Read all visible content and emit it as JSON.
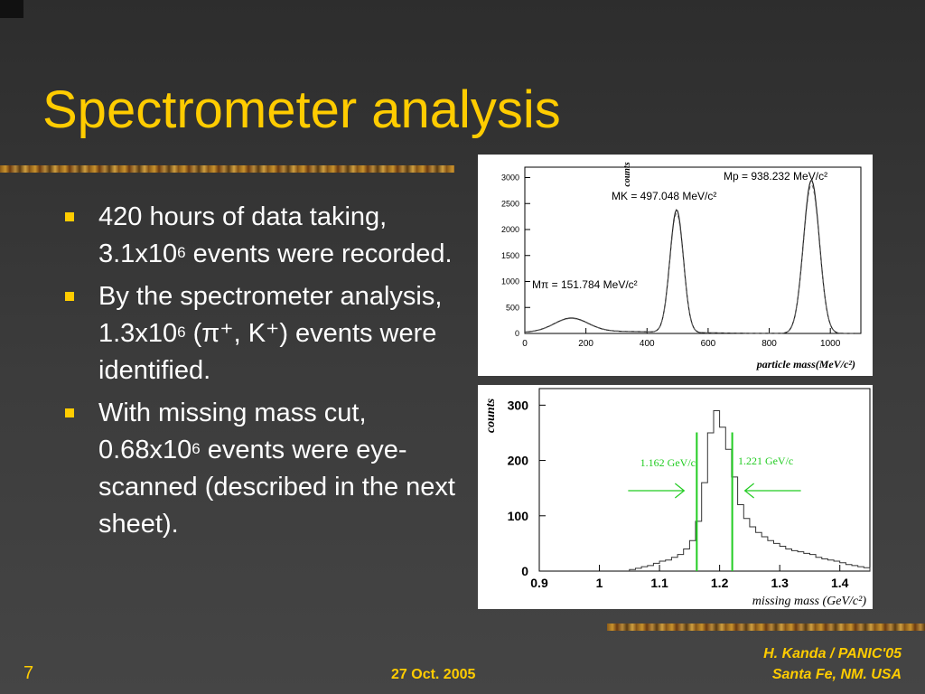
{
  "slide": {
    "title": "Spectrometer analysis",
    "page_number": "7",
    "date": "27 Oct. 2005",
    "author_line1": "H. Kanda / PANIC'05",
    "author_line2": "Santa Fe, NM. USA",
    "accent_color": "#ffcc00"
  },
  "bullets": [
    {
      "a": "420 hours of data taking, 3.1x10",
      "sup": "6",
      "b": " events were recorded."
    },
    {
      "a": "By the spectrometer analysis, 1.3x10",
      "sup": "6",
      "b": " (π⁺, K⁺) events were identified."
    },
    {
      "a": "With missing mass cut, 0.68x10",
      "sup": "6",
      "b": " events were eye-scanned (described in the next sheet)."
    }
  ],
  "chart_data": [
    {
      "type": "line",
      "xlabel": "particle mass(MeV/c²)",
      "ylabel": "counts",
      "xlim": [
        0,
        1100
      ],
      "ylim": [
        0,
        3200
      ],
      "x_ticks": [
        "0",
        "200",
        "400",
        "600",
        "800",
        "1000"
      ],
      "y_ticks": [
        "0",
        "500",
        "1000",
        "1500",
        "2000",
        "2500",
        "3000"
      ],
      "annotations": [
        "Mπ = 151.784 MeV/c²",
        "MK = 497.048 MeV/c²",
        "Mp = 938.232 MeV/c²"
      ],
      "peaks": [
        {
          "mass": 151.784,
          "counts": 260,
          "width": 55
        },
        {
          "mass": 497.048,
          "counts": 2360,
          "width": 22
        },
        {
          "mass": 938.232,
          "counts": 2950,
          "width": 26
        }
      ]
    },
    {
      "type": "histogram",
      "xlabel": "missing mass (GeV/c²)",
      "ylabel": "counts",
      "xlim": [
        0.9,
        1.45
      ],
      "ylim": [
        0,
        330
      ],
      "x_ticks": [
        "0.9",
        "1",
        "1.1",
        "1.2",
        "1.3",
        "1.4"
      ],
      "y_ticks": [
        "0",
        "100",
        "200",
        "300"
      ],
      "cut_low": {
        "value": 1.162,
        "label": "1.162 GeV/c"
      },
      "cut_high": {
        "value": 1.221,
        "label": "1.221 GeV/c"
      },
      "cut_color": "#22cc22",
      "bins_x": [
        1.05,
        1.06,
        1.07,
        1.08,
        1.09,
        1.1,
        1.11,
        1.12,
        1.13,
        1.14,
        1.15,
        1.16,
        1.17,
        1.18,
        1.19,
        1.2,
        1.21,
        1.22,
        1.23,
        1.24,
        1.25,
        1.26,
        1.27,
        1.28,
        1.29,
        1.3,
        1.31,
        1.32,
        1.33,
        1.34,
        1.35,
        1.36,
        1.37,
        1.38,
        1.39,
        1.4,
        1.41,
        1.42,
        1.43,
        1.44
      ],
      "bins_y": [
        3,
        5,
        8,
        10,
        14,
        18,
        20,
        25,
        30,
        40,
        55,
        90,
        160,
        250,
        290,
        260,
        220,
        170,
        120,
        95,
        80,
        70,
        62,
        55,
        50,
        45,
        40,
        37,
        35,
        32,
        30,
        25,
        22,
        20,
        18,
        15,
        12,
        10,
        8,
        6
      ]
    }
  ]
}
